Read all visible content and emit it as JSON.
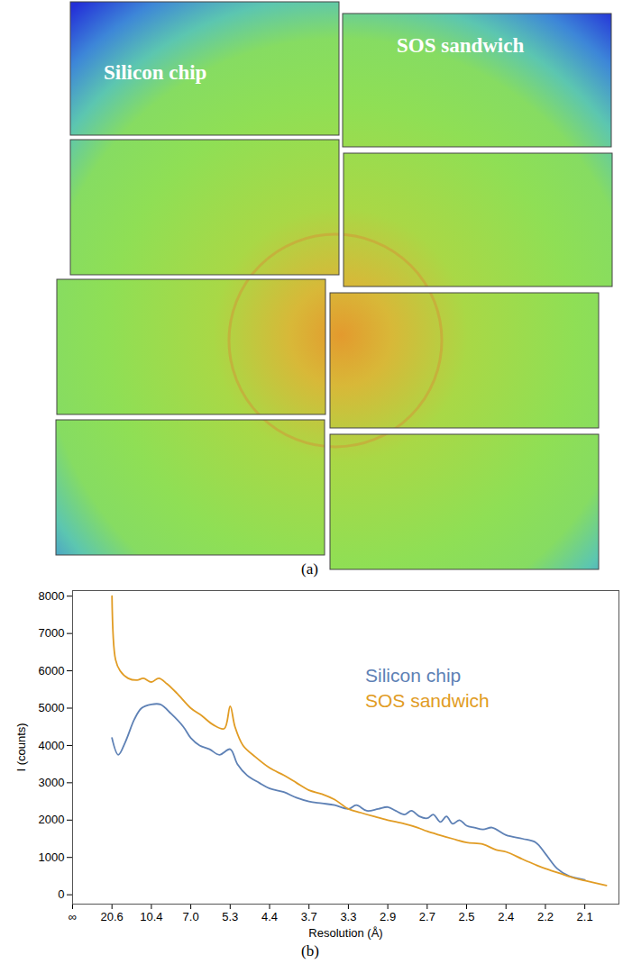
{
  "panel_a": {
    "label": "(a)",
    "texts": [
      "Silicon chip",
      "SOS sandwich"
    ]
  },
  "chart_data": {
    "type": "line",
    "panel_label": "(b)",
    "x_label": "Resolution (Å)",
    "y_label": "I (counts)",
    "xlim": [
      0,
      0.495
    ],
    "xticks": [
      {
        "value": 0,
        "label": "∞"
      },
      {
        "value": 0.0485,
        "label": "20.6"
      },
      {
        "value": 0.0962,
        "label": "10.4"
      },
      {
        "value": 0.1429,
        "label": "7.0"
      },
      {
        "value": 0.1887,
        "label": "5.3"
      },
      {
        "value": 0.2273,
        "label": "4.4"
      },
      {
        "value": 0.2703,
        "label": "3.7"
      },
      {
        "value": 0.303,
        "label": "3.3"
      },
      {
        "value": 0.3448,
        "label": "2.9"
      },
      {
        "value": 0.3704,
        "label": "2.7"
      },
      {
        "value": 0.4,
        "label": "2.5"
      },
      {
        "value": 0.4167,
        "label": "2.4"
      },
      {
        "value": 0.4545,
        "label": "2.2"
      },
      {
        "value": 0.4762,
        "label": "2.1"
      }
    ],
    "ylim": [
      -250,
      8150
    ],
    "yticks": [
      0,
      1000,
      2000,
      3000,
      4000,
      5000,
      6000,
      7000,
      8000
    ],
    "grid": false,
    "legend": "top-right",
    "series": [
      {
        "name": "Silicon chip",
        "color": "#5e81b5",
        "x": [
          0.0485,
          0.0561,
          0.0648,
          0.0756,
          0.0843,
          0.0962,
          0.1069,
          0.1196,
          0.1341,
          0.1429,
          0.1532,
          0.1647,
          0.1761,
          0.1887,
          0.1958,
          0.2053,
          0.2171,
          0.2273,
          0.2429,
          0.2566,
          0.2703,
          0.281,
          0.2916,
          0.303,
          0.3114,
          0.3225,
          0.3346,
          0.3448,
          0.3499,
          0.3556,
          0.3602,
          0.3653,
          0.3704,
          0.375,
          0.3803,
          0.3849,
          0.3895,
          0.3947,
          0.4,
          0.4033,
          0.407,
          0.4108,
          0.4167,
          0.4327,
          0.4453,
          0.4545,
          0.461,
          0.4675,
          0.4762
        ],
        "values": [
          4200,
          3750,
          4100,
          4700,
          5000,
          5100,
          5100,
          4850,
          4500,
          4200,
          4000,
          3900,
          3750,
          3900,
          3500,
          3200,
          3000,
          2850,
          2750,
          2600,
          2500,
          2450,
          2400,
          2300,
          2400,
          2250,
          2300,
          2350,
          2250,
          2150,
          2250,
          2100,
          2050,
          2150,
          1950,
          2100,
          1900,
          2000,
          1850,
          1800,
          1750,
          1800,
          1600,
          1500,
          1400,
          1100,
          700,
          500,
          400
        ]
      },
      {
        "name": "SOS sandwich",
        "color": "#e19c24",
        "x": [
          0.0485,
          0.0528,
          0.0583,
          0.068,
          0.0789,
          0.0865,
          0.0962,
          0.105,
          0.1147,
          0.1264,
          0.1429,
          0.1555,
          0.1692,
          0.1818,
          0.1887,
          0.1934,
          0.2013,
          0.2131,
          0.2273,
          0.2429,
          0.2566,
          0.2703,
          0.281,
          0.2916,
          0.303,
          0.316,
          0.33,
          0.3448,
          0.3556,
          0.3641,
          0.3704,
          0.3796,
          0.3895,
          0.4,
          0.407,
          0.4126,
          0.4167,
          0.4327,
          0.4453,
          0.4545,
          0.4621,
          0.4702,
          0.4762,
          0.4881
        ],
        "values": [
          8000,
          6300,
          6000,
          5800,
          5750,
          5800,
          5700,
          5800,
          5650,
          5400,
          5000,
          4800,
          4550,
          4450,
          5050,
          4500,
          4000,
          3700,
          3400,
          3200,
          3000,
          2800,
          2700,
          2550,
          2300,
          2200,
          2100,
          2000,
          1900,
          1800,
          1700,
          1600,
          1500,
          1400,
          1350,
          1200,
          1150,
          950,
          800,
          700,
          580,
          450,
          380,
          250
        ]
      }
    ]
  }
}
